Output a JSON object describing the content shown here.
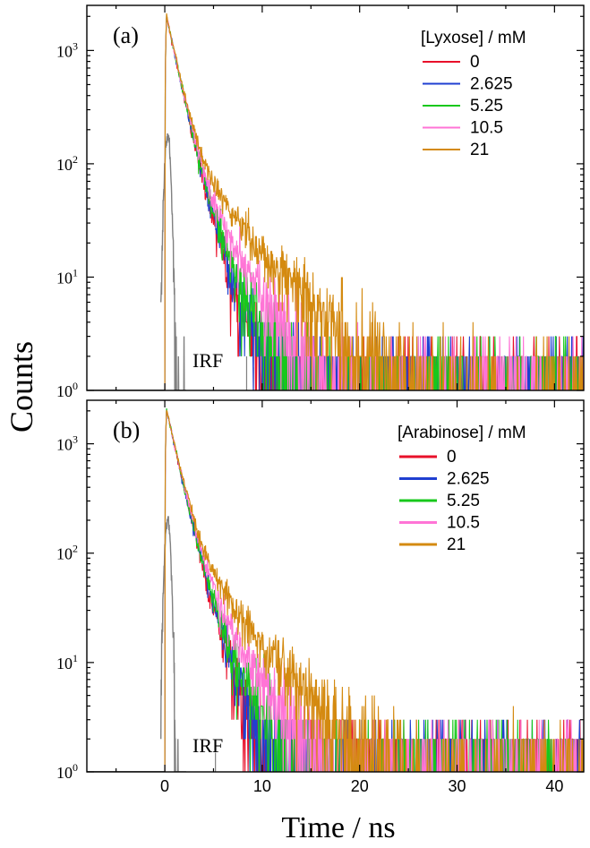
{
  "figure": {
    "ylabel": "Counts",
    "xlabel": "Time / ns"
  },
  "chart_data": [
    {
      "type": "line",
      "panel_label": "(a)",
      "legend_title": "[Lyxose] / mM",
      "legend_position": "top-right",
      "annotation": "IRF",
      "x_range": [
        -8,
        43
      ],
      "x_ticks": [
        "0",
        "10",
        "20",
        "30",
        "40"
      ],
      "y_scale": "log",
      "y_range": [
        1,
        2500
      ],
      "y_ticks": [
        "10^0",
        "10^1",
        "10^2",
        "10^3"
      ],
      "grid": false,
      "series": [
        {
          "name": "0",
          "color": "#e8102a",
          "peak": 2000,
          "tau_fast": 1.05,
          "tau_slow": 2.3,
          "amp_slow": 0.05,
          "noise_end": 12.5
        },
        {
          "name": "2.625",
          "color": "#1f3fd1",
          "peak": 2000,
          "tau_fast": 1.05,
          "tau_slow": 2.5,
          "amp_slow": 0.05,
          "noise_end": 14
        },
        {
          "name": "5.25",
          "color": "#18c81c",
          "peak": 2000,
          "tau_fast": 1.05,
          "tau_slow": 2.8,
          "amp_slow": 0.05,
          "noise_end": 18
        },
        {
          "name": "10.5",
          "color": "#ff74d6",
          "peak": 2000,
          "tau_fast": 1.05,
          "tau_slow": 3.4,
          "amp_slow": 0.06,
          "noise_end": 23
        },
        {
          "name": "21",
          "color": "#d48a10",
          "peak": 2000,
          "tau_fast": 1.05,
          "tau_slow": 4.6,
          "amp_slow": 0.07,
          "noise_end": 38
        }
      ],
      "irf": {
        "color": "#808080",
        "peak_time": 0.3,
        "peak": 180,
        "width": 0.55
      }
    },
    {
      "type": "line",
      "panel_label": "(b)",
      "legend_title": "[Arabinose] / mM",
      "legend_position": "top-right",
      "annotation": "IRF",
      "x_range": [
        -8,
        43
      ],
      "x_ticks": [
        "0",
        "10",
        "20",
        "30",
        "40"
      ],
      "y_scale": "log",
      "y_range": [
        1,
        2500
      ],
      "y_ticks": [
        "10^0",
        "10^1",
        "10^2",
        "10^3"
      ],
      "grid": false,
      "series": [
        {
          "name": "0",
          "color": "#e8102a",
          "peak": 2050,
          "tau_fast": 1.05,
          "tau_slow": 2.2,
          "amp_slow": 0.05,
          "noise_end": 11
        },
        {
          "name": "2.625",
          "color": "#1f3fd1",
          "peak": 2050,
          "tau_fast": 1.05,
          "tau_slow": 2.4,
          "amp_slow": 0.05,
          "noise_end": 13
        },
        {
          "name": "5.25",
          "color": "#18c81c",
          "peak": 2050,
          "tau_fast": 1.05,
          "tau_slow": 2.7,
          "amp_slow": 0.05,
          "noise_end": 17
        },
        {
          "name": "10.5",
          "color": "#ff74d6",
          "peak": 2050,
          "tau_fast": 1.05,
          "tau_slow": 3.3,
          "amp_slow": 0.06,
          "noise_end": 22
        },
        {
          "name": "21",
          "color": "#d48a10",
          "peak": 2050,
          "tau_fast": 1.05,
          "tau_slow": 4.3,
          "amp_slow": 0.07,
          "noise_end": 36
        }
      ],
      "irf": {
        "color": "#808080",
        "peak_time": 0.3,
        "peak": 200,
        "width": 0.55
      }
    }
  ]
}
